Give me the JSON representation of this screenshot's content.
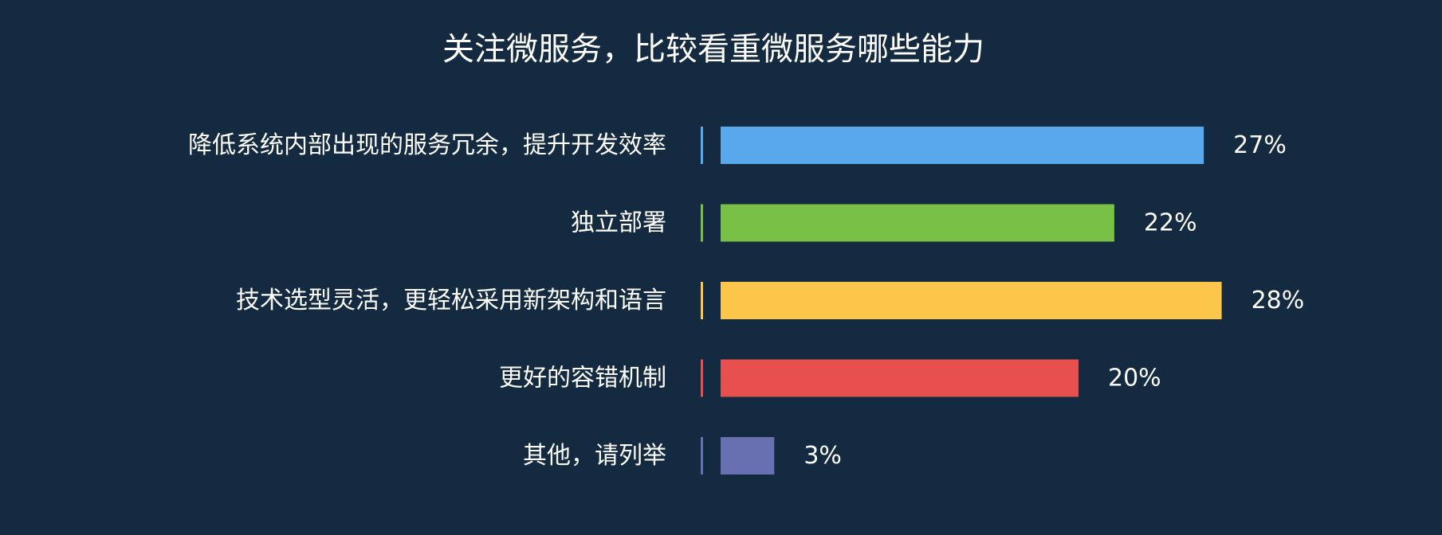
{
  "chart_data": {
    "type": "bar",
    "orientation": "horizontal",
    "title": "关注微服务，比较看重微服务哪些能力",
    "categories": [
      "降低系统内部出现的服务冗余，提升开发效率",
      "独立部署",
      "技术选型灵活，更轻松采用新架构和语言",
      "更好的容错机制",
      "其他，请列举"
    ],
    "values": [
      27,
      22,
      28,
      20,
      3
    ],
    "value_labels": [
      "27%",
      "22%",
      "28%",
      "20%",
      "3%"
    ],
    "unit": "%",
    "colors": [
      "#5aa8ec",
      "#78c046",
      "#fcc64b",
      "#e85050",
      "#6870b2"
    ],
    "xlim": [
      0,
      28
    ],
    "grid": false,
    "legend": "none",
    "background": "#142a40",
    "text_color": "#ffffff"
  }
}
